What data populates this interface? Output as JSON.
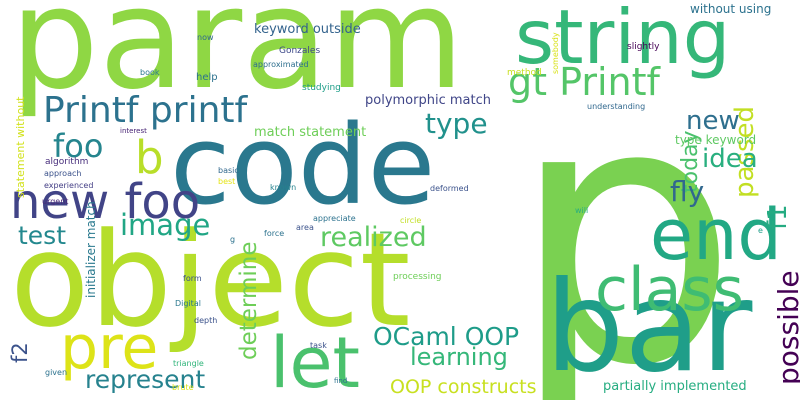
{
  "words": [
    {
      "text": "param",
      "color": "#8fd744"
    },
    {
      "text": "p",
      "color": "#7ad151"
    },
    {
      "text": "object",
      "color": "#b5de2b"
    },
    {
      "text": "code",
      "color": "#2a788e"
    },
    {
      "text": "bar",
      "color": "#1f9e89"
    },
    {
      "text": "string",
      "color": "#35b779"
    },
    {
      "text": "end",
      "color": "#22a884"
    },
    {
      "text": "class",
      "color": "#3fbc73"
    },
    {
      "text": "let",
      "color": "#4ac16d"
    },
    {
      "text": "pre",
      "color": "#dde318"
    },
    {
      "text": "new foo",
      "color": "#414487"
    },
    {
      "text": "Printf printf",
      "color": "#2c728e"
    },
    {
      "text": "gt Printf",
      "color": "#54c568"
    },
    {
      "text": "b",
      "color": "#b8de29"
    },
    {
      "text": "foo",
      "color": "#25858e"
    },
    {
      "text": "passed",
      "color": "#c2df23"
    },
    {
      "text": "new",
      "color": "#2e6f8e"
    },
    {
      "text": "type",
      "color": "#21918c"
    },
    {
      "text": "idea",
      "color": "#29af7f"
    },
    {
      "text": "today",
      "color": "#4ac16d"
    },
    {
      "text": "fly",
      "color": "#31688e"
    },
    {
      "text": "f1",
      "color": "#25ab82"
    },
    {
      "text": "possible",
      "color": "#440154"
    },
    {
      "text": "image",
      "color": "#21a685"
    },
    {
      "text": "test",
      "color": "#23888e"
    },
    {
      "text": "realized",
      "color": "#5ec962"
    },
    {
      "text": "determine",
      "color": "#6ece58"
    },
    {
      "text": "OCaml OOP",
      "color": "#1e9c89"
    },
    {
      "text": "learning",
      "color": "#35b779"
    },
    {
      "text": "represent",
      "color": "#26828e"
    },
    {
      "text": "f2",
      "color": "#3b528b"
    },
    {
      "text": "OOP constructs",
      "color": "#c8e020"
    },
    {
      "text": "polymorphic match",
      "color": "#404688"
    },
    {
      "text": "keyword outside",
      "color": "#33638d"
    },
    {
      "text": "match statement",
      "color": "#6ece58"
    },
    {
      "text": "initializer match",
      "color": "#29798e"
    },
    {
      "text": "statement without",
      "color": "#d2e21b"
    },
    {
      "text": "partially implemented",
      "color": "#26ad81"
    },
    {
      "text": "without using",
      "color": "#2c728e"
    },
    {
      "text": "type keyword",
      "color": "#5ec962"
    },
    {
      "text": "slightly",
      "color": "#440154"
    },
    {
      "text": "understanding",
      "color": "#31688e"
    },
    {
      "text": "now",
      "color": "#31688e"
    },
    {
      "text": "Gonzales",
      "color": "#3e4989"
    },
    {
      "text": "approximated",
      "color": "#2e6f8e"
    },
    {
      "text": "studying",
      "color": "#1f9e89"
    },
    {
      "text": "help",
      "color": "#2c728e"
    },
    {
      "text": "book",
      "color": "#2a788e"
    },
    {
      "text": "interest",
      "color": "#482475"
    },
    {
      "text": "algorithm",
      "color": "#472d7b"
    },
    {
      "text": "approach",
      "color": "#3b528b"
    },
    {
      "text": "experienced",
      "color": "#433e85"
    },
    {
      "text": "urgent",
      "color": "#482878"
    },
    {
      "text": "method",
      "color": "#c8e020"
    },
    {
      "text": "somebody",
      "color": "#d8e219"
    },
    {
      "text": "basic",
      "color": "#31688e"
    },
    {
      "text": "best",
      "color": "#e5e419"
    },
    {
      "text": "known",
      "color": "#26828e"
    },
    {
      "text": "deformed",
      "color": "#3b528b"
    },
    {
      "text": "appreciate",
      "color": "#2c728e"
    },
    {
      "text": "circle",
      "color": "#c2df23"
    },
    {
      "text": "area",
      "color": "#3b528b"
    },
    {
      "text": "force",
      "color": "#2c728e"
    },
    {
      "text": "g",
      "color": "#2c728e"
    },
    {
      "text": "will",
      "color": "#29af7f"
    },
    {
      "text": "e",
      "color": "#1f9e89"
    },
    {
      "text": "form",
      "color": "#3b528b"
    },
    {
      "text": "processing",
      "color": "#6ece58"
    },
    {
      "text": "Digital",
      "color": "#2a788e"
    },
    {
      "text": "depth",
      "color": "#3b528b"
    },
    {
      "text": "task",
      "color": "#3b528b"
    },
    {
      "text": "triangle",
      "color": "#31b57b"
    },
    {
      "text": "given",
      "color": "#2c728e"
    },
    {
      "text": "find",
      "color": "#2c728e"
    },
    {
      "text": "brute",
      "color": "#d8e219"
    }
  ]
}
